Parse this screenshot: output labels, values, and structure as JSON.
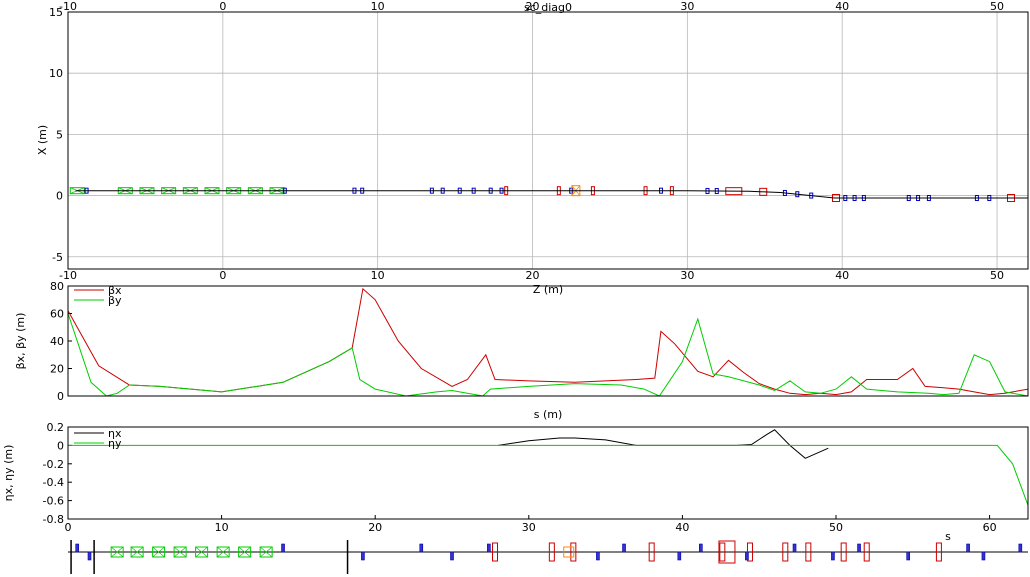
{
  "chart_data": [
    {
      "type": "line",
      "title": "sc_diag0",
      "xlabel": "Z (m)",
      "ylabel": "X (m)",
      "xlim": [
        -10,
        52
      ],
      "ylim": [
        -6,
        15
      ],
      "xticks": [
        -10,
        0,
        10,
        20,
        30,
        40,
        50
      ],
      "yticks": [
        -5,
        0,
        5,
        10,
        15
      ],
      "grid": true,
      "series": [
        {
          "color": "#000000",
          "x": [
            -9.5,
            30,
            31,
            34,
            36,
            38,
            39.5,
            45,
            52
          ],
          "y": [
            0.4,
            0.4,
            0.38,
            0.35,
            0.25,
            0.0,
            -0.2,
            -0.2,
            -0.2
          ]
        }
      ],
      "elements": [
        {
          "kind": "green-box",
          "z": [
            -9.4,
            -6.3,
            -4.9,
            -3.5,
            -2.1,
            -0.7,
            0.7,
            2.1,
            3.5
          ]
        },
        {
          "kind": "blue-small",
          "z": [
            -8.8,
            4.0,
            8.5,
            9.0,
            13.5,
            14.2,
            15.3,
            16.2,
            17.3,
            18.0,
            22.5,
            28.3,
            31.3,
            31.9,
            36.3,
            37.1,
            38.0,
            40.2,
            40.8,
            41.4,
            44.3,
            44.9,
            45.6,
            48.7,
            49.5
          ]
        },
        {
          "kind": "red-narrow",
          "z": [
            18.3,
            21.7,
            23.9,
            27.3,
            29.0
          ]
        },
        {
          "kind": "orange-crossed",
          "z": [
            22.8
          ]
        },
        {
          "kind": "red-wide",
          "z": [
            33.0
          ]
        },
        {
          "kind": "red-square",
          "z": [
            34.9,
            39.6,
            50.9
          ]
        }
      ]
    },
    {
      "type": "line",
      "title": "",
      "xlabel": "s (m)",
      "ylabel": "βx, βy (m)",
      "xlim": [
        0,
        62.5
      ],
      "ylim": [
        0,
        80
      ],
      "yticks": [
        0,
        20,
        40,
        60,
        80
      ],
      "grid": false,
      "legend": "top-left",
      "series": [
        {
          "name": "βx",
          "color": "#cc0000",
          "x": [
            0,
            2,
            4,
            6,
            10,
            14,
            17,
            18.5,
            19.2,
            20,
            21.5,
            23,
            25,
            26,
            27.2,
            27.8,
            30,
            33,
            35,
            37,
            38.2,
            38.6,
            39.5,
            41,
            42,
            43,
            44,
            45,
            46,
            47,
            48,
            49,
            50,
            51,
            52,
            54,
            55,
            55.8,
            57,
            58,
            59,
            60,
            61,
            62.5
          ],
          "y": [
            62,
            22,
            8,
            7,
            3,
            10,
            25,
            35,
            78,
            70,
            40,
            20,
            7,
            12,
            30,
            12,
            11,
            10,
            11,
            12,
            13,
            47,
            38,
            18,
            14,
            26,
            17,
            9,
            5,
            2,
            1,
            2,
            1,
            3,
            12,
            12,
            20,
            7,
            6,
            5,
            3,
            1,
            2,
            5
          ]
        },
        {
          "name": "βy",
          "color": "#00cc00",
          "x": [
            0,
            1.5,
            2.5,
            3.2,
            4,
            6,
            10,
            14,
            17,
            18.5,
            19,
            20,
            22,
            24,
            25,
            26,
            27,
            27.5,
            30,
            33,
            36,
            37.5,
            38.5,
            40,
            41,
            42,
            43,
            45,
            46,
            47,
            48,
            49,
            50,
            51,
            52,
            54,
            56,
            57,
            58,
            59,
            60,
            61,
            62.5
          ],
          "y": [
            60,
            10,
            0,
            2,
            8,
            7,
            3,
            10,
            25,
            35,
            12,
            5,
            0,
            3,
            4,
            2,
            0,
            5,
            7,
            9,
            8,
            5,
            0,
            25,
            56,
            16,
            14,
            8,
            4,
            11,
            3,
            2,
            5,
            14,
            5,
            3,
            2,
            1,
            2,
            30,
            25,
            3,
            0
          ]
        }
      ]
    },
    {
      "type": "line",
      "title": "",
      "xlabel": "s",
      "ylabel": "ηx, ηy (m)",
      "xlim": [
        0,
        62.5
      ],
      "ylim": [
        -0.8,
        0.2
      ],
      "xticks": [
        0,
        10,
        20,
        30,
        40,
        50,
        60
      ],
      "yticks": [
        0.2,
        0,
        -0.2,
        -0.4,
        -0.6,
        -0.8
      ],
      "grid": false,
      "legend": "top-left",
      "series": [
        {
          "name": "ηx",
          "color": "#000000",
          "x": [
            28,
            30,
            32,
            33,
            35,
            37,
            43.5,
            44.5,
            45.5,
            46,
            47,
            48,
            49.5
          ],
          "y": [
            0.0,
            0.05,
            0.08,
            0.08,
            0.06,
            0.0,
            0.0,
            0.01,
            0.12,
            0.17,
            0.0,
            -0.14,
            -0.03
          ]
        },
        {
          "name": "ηy",
          "color": "#00cc00",
          "x": [
            0,
            60.5,
            61.5,
            62.5
          ],
          "y": [
            0,
            0,
            -0.2,
            -0.65
          ]
        }
      ]
    }
  ]
}
